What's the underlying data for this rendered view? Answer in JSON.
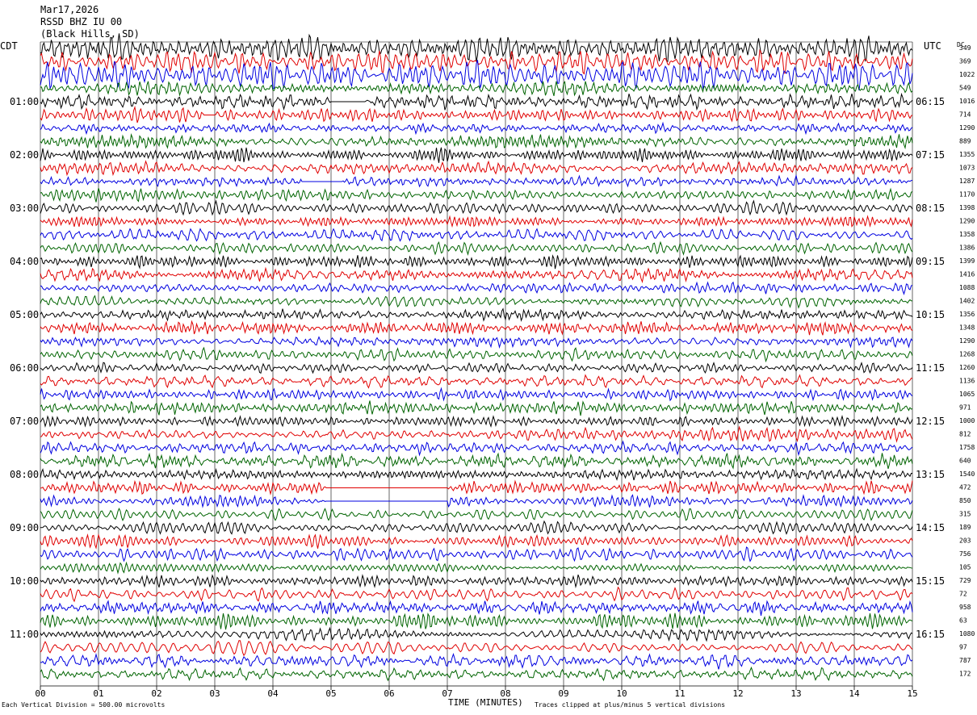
{
  "header": {
    "date": "Mar17,2026",
    "station": "RSSD BHZ IU 00",
    "location": "(Black Hills, SD)"
  },
  "axis_labels": {
    "left_timezone": "CDT",
    "right_timezone": "UTC",
    "dc_label": "DC",
    "x_title": "TIME (MINUTES)",
    "footer_left": "Each Vertical Division =  500.00 microvolts",
    "footer_right": "Traces clipped at plus/minus 5 vertical divisions"
  },
  "colors": {
    "trace_cycle": [
      "#000000",
      "#e00000",
      "#0000e0",
      "#006400"
    ],
    "grid": "#000000",
    "background": "#ffffff"
  },
  "chart_data": {
    "type": "line",
    "x_ticks": [
      "00",
      "01",
      "02",
      "03",
      "04",
      "05",
      "06",
      "07",
      "08",
      "09",
      "10",
      "11",
      "12",
      "13",
      "14",
      "15"
    ],
    "xlim": [
      0,
      15
    ],
    "left_hour_labels": [
      "01:00",
      "02:00",
      "03:00",
      "04:00",
      "05:00",
      "06:00",
      "07:00",
      "08:00",
      "09:00",
      "10:00",
      "11:00"
    ],
    "right_hour_labels": [
      "06:15",
      "07:15",
      "08:15",
      "09:15",
      "10:15",
      "11:15",
      "12:15",
      "13:15",
      "14:15",
      "15:15",
      "16:15"
    ],
    "trace_count": 48,
    "dc_offsets": [
      "349",
      "369",
      "1022",
      "549",
      "1016",
      "714",
      "1290",
      "889",
      "1355",
      "1073",
      "1287",
      "1170",
      "1398",
      "1290",
      "1358",
      "1386",
      "1399",
      "1416",
      "1088",
      "1402",
      "1356",
      "1348",
      "1290",
      "1268",
      "1260",
      "1136",
      "1065",
      "971",
      "1000",
      "812",
      "1758",
      "640",
      "1540",
      "472",
      "850",
      "315",
      "189",
      "203",
      "756",
      "105",
      "729",
      "72",
      "958",
      "63",
      "1080",
      "97",
      "787",
      "172"
    ],
    "gaps": [
      {
        "trace": 4,
        "start_min": 5.0,
        "end_min": 5.6
      },
      {
        "trace": 5,
        "start_min": 2.8,
        "end_min": 3.0
      },
      {
        "trace": 10,
        "start_min": 4.5,
        "end_min": 5.2
      },
      {
        "trace": 33,
        "start_min": 4.9,
        "end_min": 7.0
      },
      {
        "trace": 34,
        "start_min": 4.9,
        "end_min": 7.0
      }
    ],
    "scale_microvolts_per_division": 500.0,
    "clip_divisions": 5
  }
}
